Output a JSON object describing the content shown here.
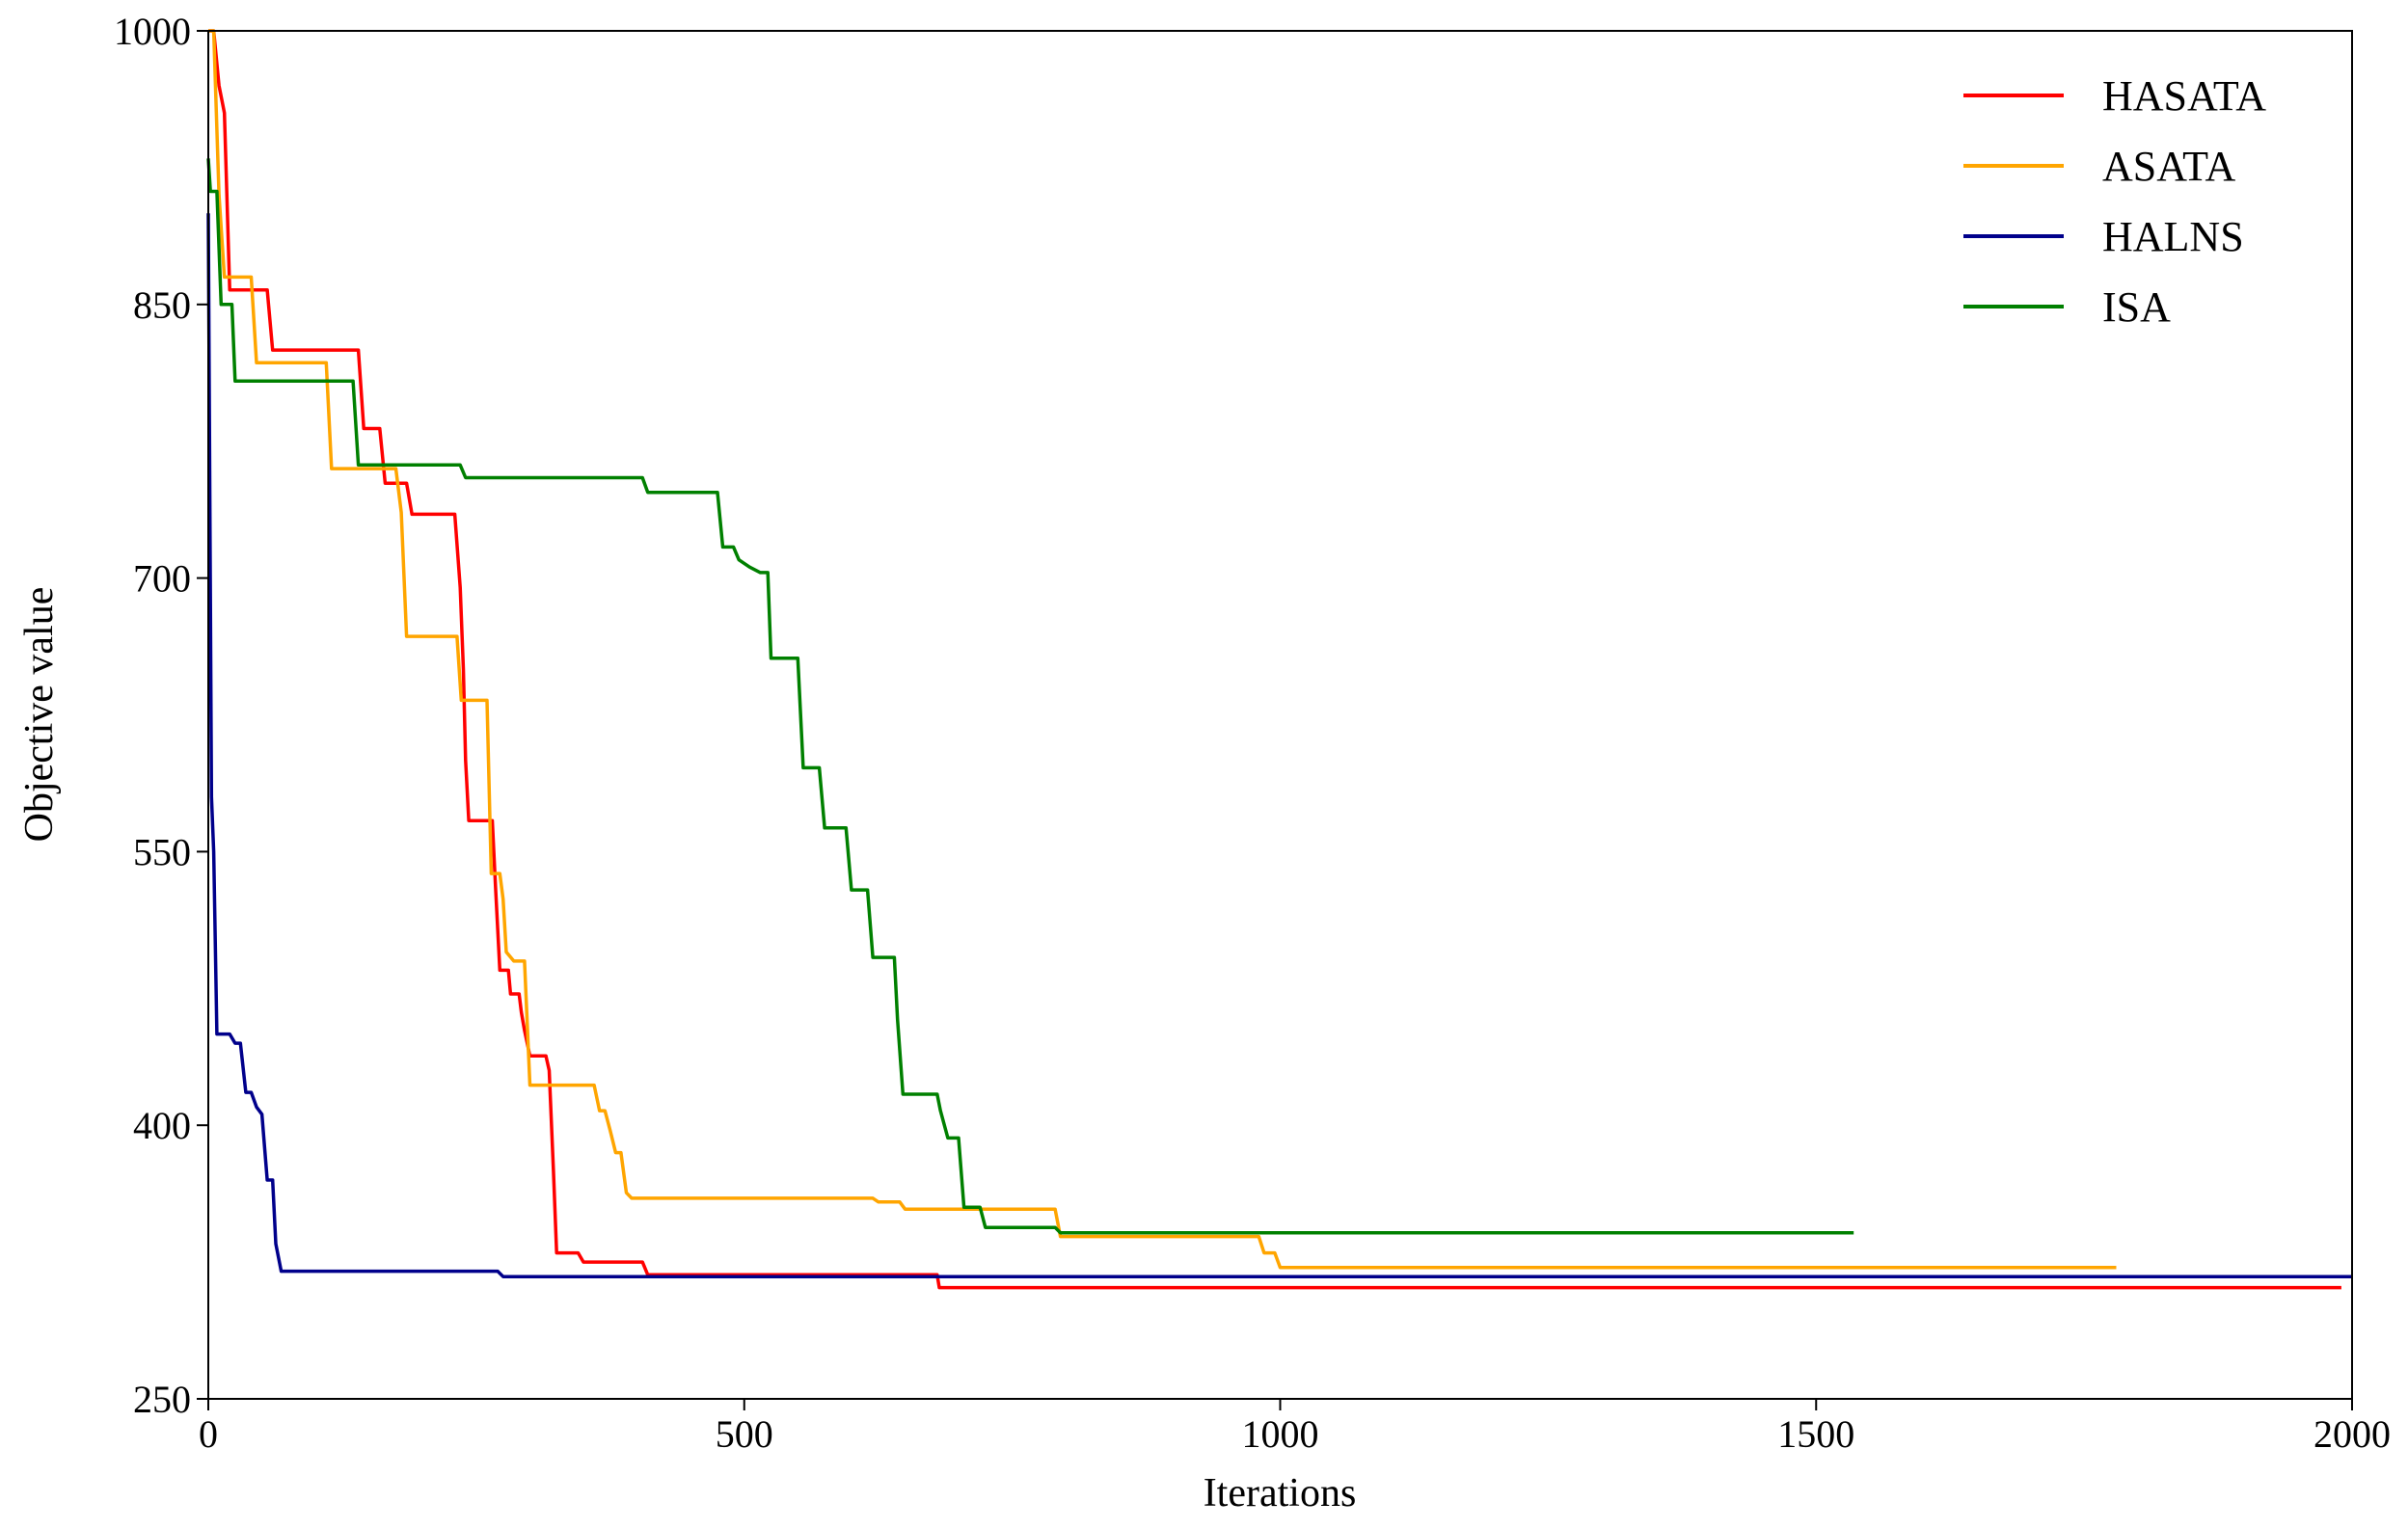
{
  "chart_data": {
    "type": "line",
    "xlabel": "Iterations",
    "ylabel": "Objective value",
    "xlim": [
      0,
      2000
    ],
    "ylim": [
      250,
      1000
    ],
    "xticks": [
      0,
      500,
      1000,
      1500,
      2000
    ],
    "yticks": [
      250,
      400,
      550,
      700,
      850,
      1000
    ],
    "grid": false,
    "legend_position": "top-right",
    "series": [
      {
        "name": "HASATA",
        "color": "#ff0000",
        "points": [
          [
            0,
            1000
          ],
          [
            5,
            1000
          ],
          [
            10,
            970
          ],
          [
            15,
            955
          ],
          [
            20,
            858
          ],
          [
            55,
            858
          ],
          [
            60,
            825
          ],
          [
            140,
            825
          ],
          [
            145,
            782
          ],
          [
            160,
            782
          ],
          [
            165,
            752
          ],
          [
            185,
            752
          ],
          [
            190,
            735
          ],
          [
            230,
            735
          ],
          [
            235,
            695
          ],
          [
            238,
            650
          ],
          [
            240,
            600
          ],
          [
            243,
            567
          ],
          [
            265,
            567
          ],
          [
            268,
            530
          ],
          [
            272,
            485
          ],
          [
            280,
            485
          ],
          [
            282,
            472
          ],
          [
            290,
            472
          ],
          [
            292,
            462
          ],
          [
            295,
            452
          ],
          [
            300,
            438
          ],
          [
            315,
            438
          ],
          [
            318,
            430
          ],
          [
            322,
            375
          ],
          [
            325,
            330
          ],
          [
            345,
            330
          ],
          [
            350,
            325
          ],
          [
            405,
            325
          ],
          [
            410,
            318
          ],
          [
            680,
            318
          ],
          [
            682,
            311
          ],
          [
            1990,
            311
          ]
        ]
      },
      {
        "name": "ASATA",
        "color": "#ffa500",
        "points": [
          [
            0,
            1000
          ],
          [
            5,
            1000
          ],
          [
            10,
            910
          ],
          [
            15,
            865
          ],
          [
            40,
            865
          ],
          [
            45,
            818
          ],
          [
            110,
            818
          ],
          [
            115,
            760
          ],
          [
            175,
            760
          ],
          [
            180,
            736
          ],
          [
            185,
            668
          ],
          [
            232,
            668
          ],
          [
            236,
            633
          ],
          [
            260,
            633
          ],
          [
            264,
            538
          ],
          [
            272,
            538
          ],
          [
            275,
            524
          ],
          [
            278,
            495
          ],
          [
            285,
            490
          ],
          [
            295,
            490
          ],
          [
            300,
            422
          ],
          [
            360,
            422
          ],
          [
            365,
            408
          ],
          [
            370,
            408
          ],
          [
            375,
            397
          ],
          [
            380,
            385
          ],
          [
            385,
            385
          ],
          [
            390,
            363
          ],
          [
            395,
            360
          ],
          [
            620,
            360
          ],
          [
            625,
            358
          ],
          [
            645,
            358
          ],
          [
            650,
            354
          ],
          [
            790,
            354
          ],
          [
            795,
            339
          ],
          [
            980,
            339
          ],
          [
            985,
            330
          ],
          [
            995,
            330
          ],
          [
            1000,
            322
          ],
          [
            1780,
            322
          ]
        ]
      },
      {
        "name": "HALNS",
        "color": "#00008b",
        "points": [
          [
            0,
            900
          ],
          [
            3,
            580
          ],
          [
            5,
            550
          ],
          [
            8,
            450
          ],
          [
            20,
            450
          ],
          [
            25,
            445
          ],
          [
            30,
            445
          ],
          [
            35,
            418
          ],
          [
            40,
            418
          ],
          [
            45,
            410
          ],
          [
            50,
            406
          ],
          [
            55,
            370
          ],
          [
            60,
            370
          ],
          [
            63,
            335
          ],
          [
            68,
            320
          ],
          [
            270,
            320
          ],
          [
            275,
            317
          ],
          [
            2000,
            317
          ]
        ]
      },
      {
        "name": "ISA",
        "color": "#008000",
        "points": [
          [
            0,
            930
          ],
          [
            2,
            912
          ],
          [
            8,
            912
          ],
          [
            12,
            850
          ],
          [
            22,
            850
          ],
          [
            25,
            808
          ],
          [
            135,
            808
          ],
          [
            140,
            762
          ],
          [
            235,
            762
          ],
          [
            240,
            755
          ],
          [
            405,
            755
          ],
          [
            410,
            747
          ],
          [
            475,
            747
          ],
          [
            480,
            717
          ],
          [
            490,
            717
          ],
          [
            495,
            710
          ],
          [
            505,
            706
          ],
          [
            515,
            703
          ],
          [
            522,
            703
          ],
          [
            525,
            656
          ],
          [
            550,
            656
          ],
          [
            555,
            596
          ],
          [
            570,
            596
          ],
          [
            575,
            563
          ],
          [
            595,
            563
          ],
          [
            600,
            529
          ],
          [
            615,
            529
          ],
          [
            620,
            492
          ],
          [
            640,
            492
          ],
          [
            643,
            458
          ],
          [
            648,
            417
          ],
          [
            680,
            417
          ],
          [
            683,
            408
          ],
          [
            690,
            393
          ],
          [
            700,
            393
          ],
          [
            705,
            355
          ],
          [
            720,
            355
          ],
          [
            725,
            344
          ],
          [
            790,
            344
          ],
          [
            795,
            341
          ],
          [
            1535,
            341
          ]
        ]
      }
    ]
  }
}
